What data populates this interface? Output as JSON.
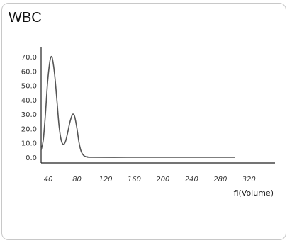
{
  "chart_data": {
    "type": "line",
    "title": "WBC",
    "xlabel": "fl(Volume)",
    "ylabel": "",
    "xlim": [
      30,
      320
    ],
    "ylim": [
      0,
      70
    ],
    "x_ticks": [
      "40",
      "80",
      "120",
      "160",
      "200",
      "240",
      "280",
      "320"
    ],
    "y_ticks": [
      "70.0",
      "60.0",
      "50.0",
      "40.0",
      "30.0",
      "20.0",
      "10.0",
      "0.0"
    ],
    "grid": false,
    "series": [
      {
        "color": "#555555",
        "points": [
          [
            30,
            5
          ],
          [
            33,
            12
          ],
          [
            36,
            30
          ],
          [
            39,
            52
          ],
          [
            42,
            66
          ],
          [
            44,
            70
          ],
          [
            46,
            68
          ],
          [
            49,
            57
          ],
          [
            52,
            40
          ],
          [
            55,
            22
          ],
          [
            58,
            12
          ],
          [
            61,
            9
          ],
          [
            64,
            11
          ],
          [
            67,
            17
          ],
          [
            70,
            24
          ],
          [
            73,
            29
          ],
          [
            75,
            30
          ],
          [
            77,
            28
          ],
          [
            80,
            20
          ],
          [
            83,
            10
          ],
          [
            86,
            4
          ],
          [
            90,
            1
          ],
          [
            95,
            0.3
          ],
          [
            100,
            0
          ],
          [
            150,
            0
          ],
          [
            200,
            0
          ],
          [
            250,
            0
          ],
          [
            300,
            0
          ]
        ]
      }
    ]
  }
}
